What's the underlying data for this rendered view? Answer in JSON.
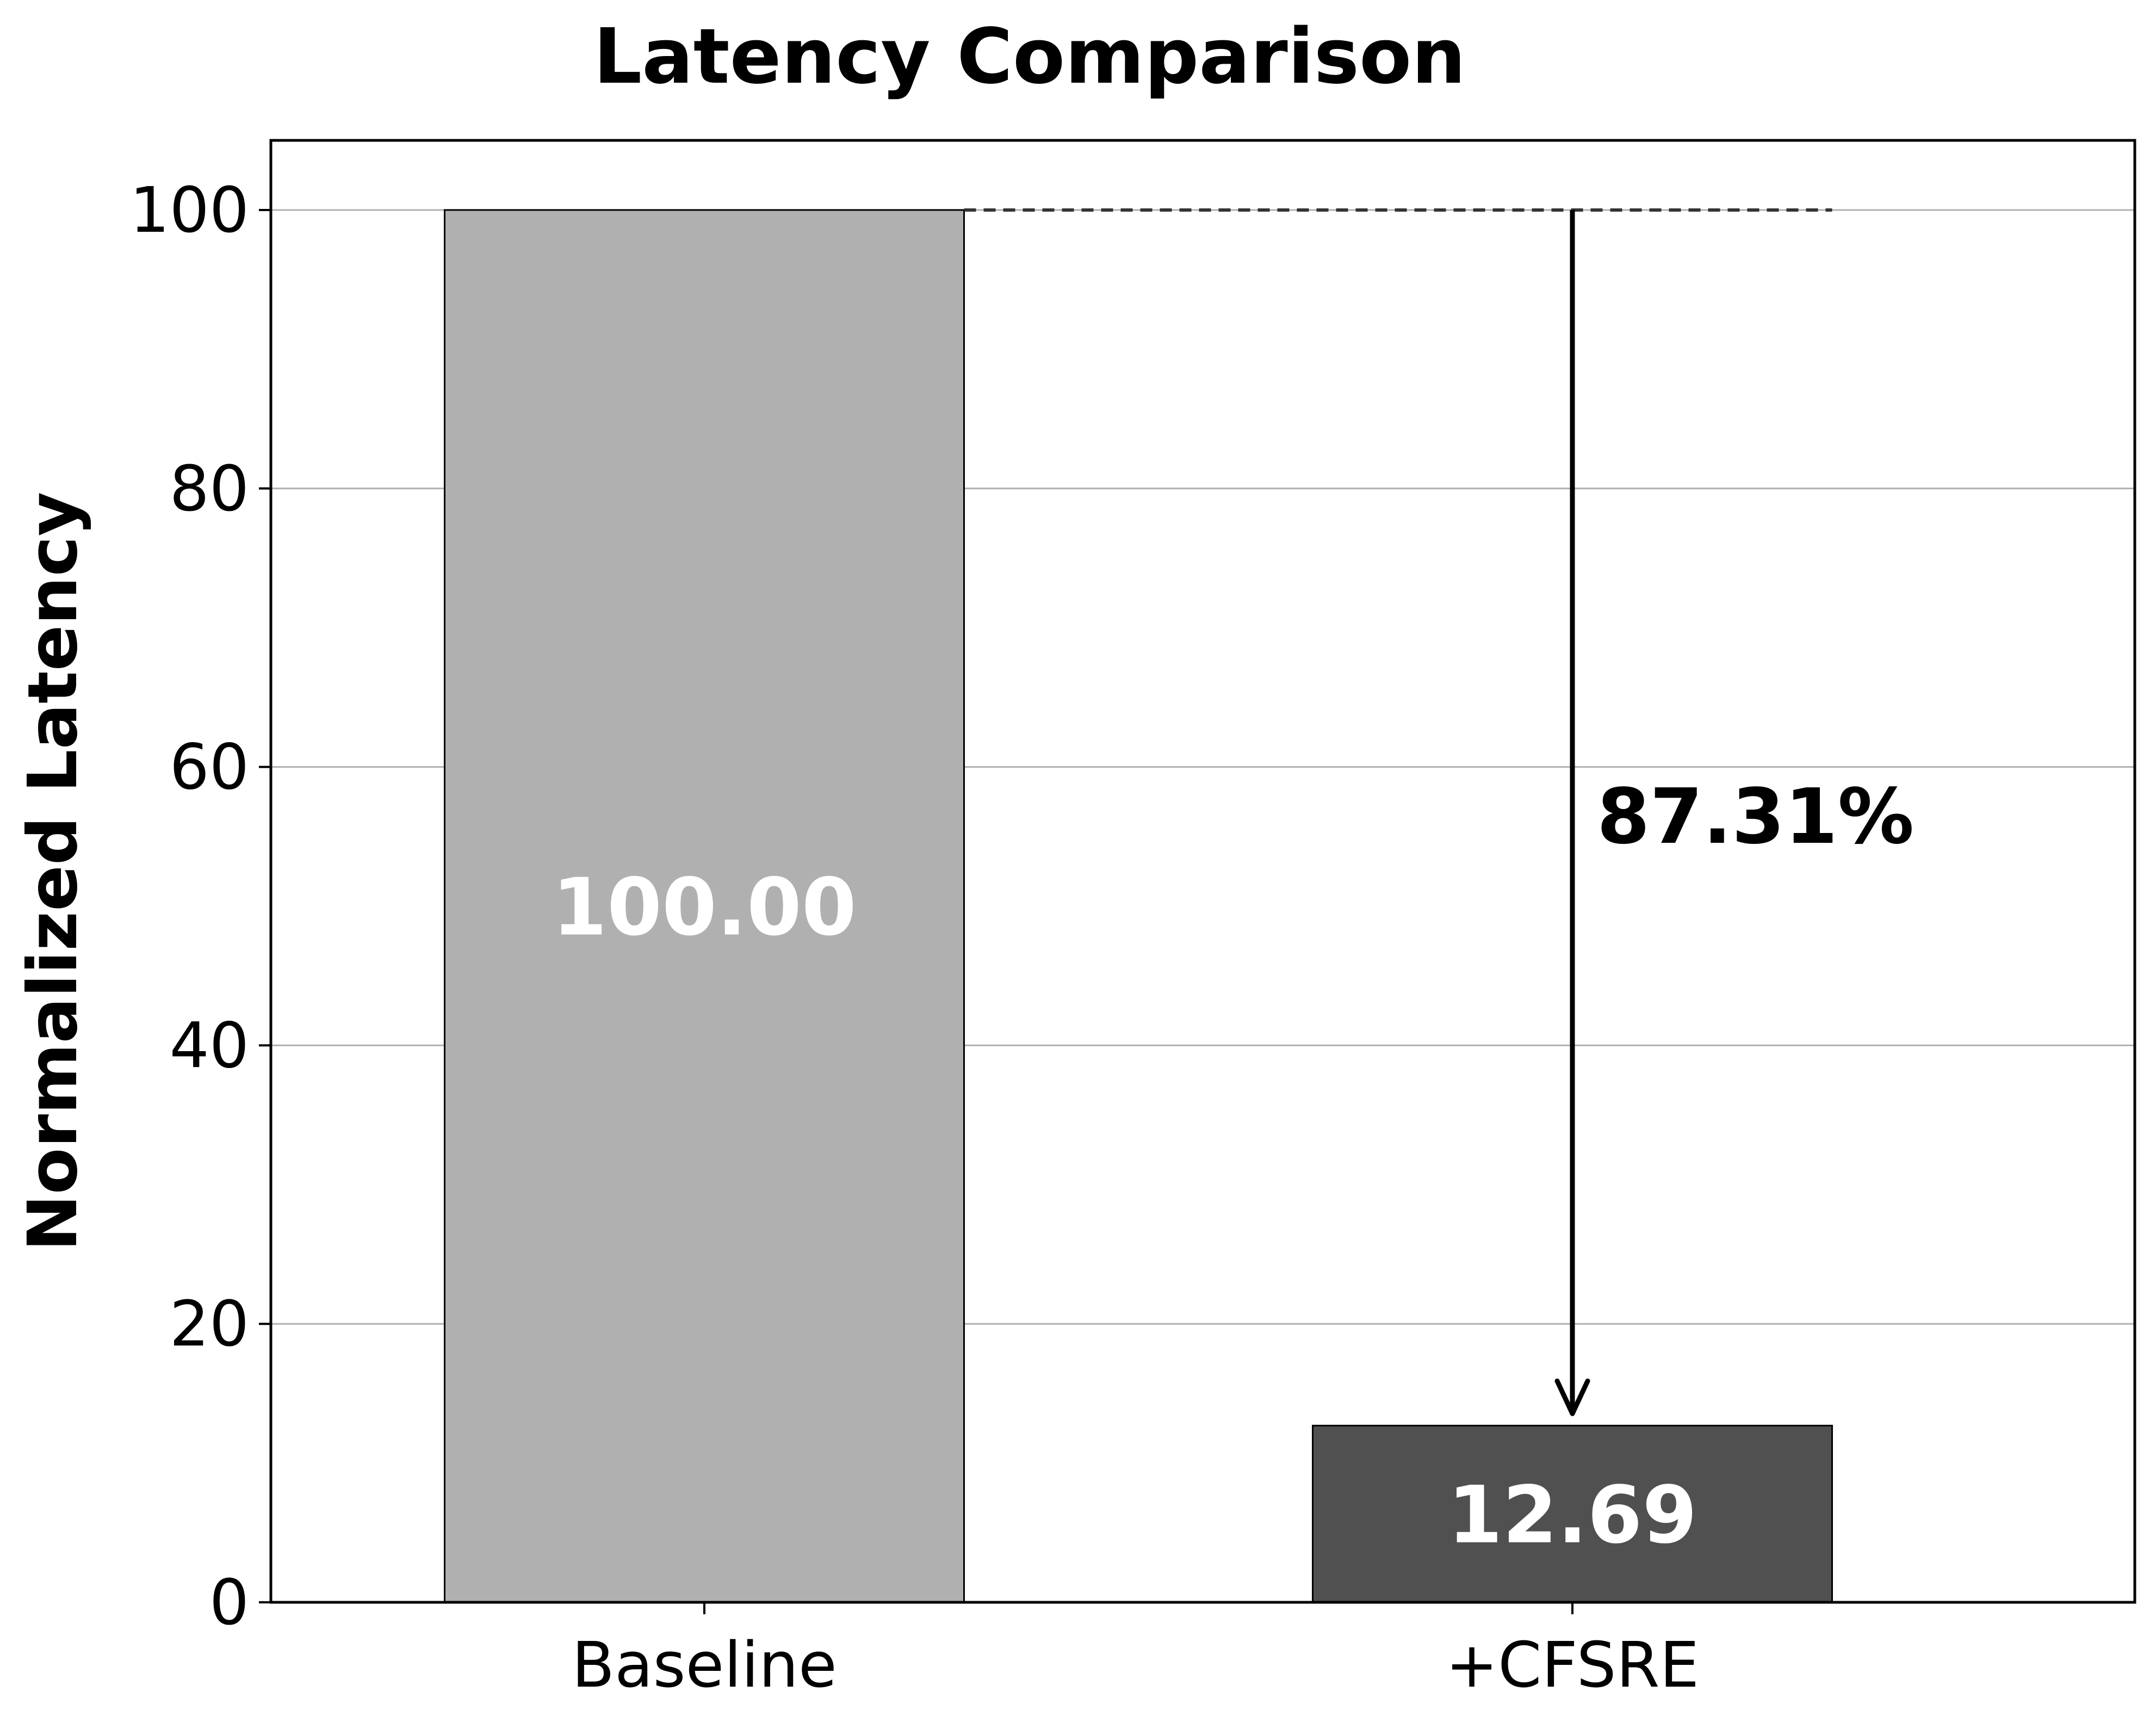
{
  "chart_data": {
    "type": "bar",
    "title": "Latency Comparison",
    "xlabel": "",
    "ylabel": "Normalized Latency",
    "categories": [
      "Baseline",
      "+CFSRE"
    ],
    "values": [
      100.0,
      12.69
    ],
    "value_labels": [
      "100.00",
      "12.69"
    ],
    "bar_colors": [
      "#b0b0b0",
      "#505050"
    ],
    "ylim": [
      0,
      105
    ],
    "yticks": [
      0,
      20,
      40,
      60,
      80,
      100
    ],
    "grid": "horizontal",
    "annotation": {
      "text": "87.31%",
      "from_value": 100,
      "to_value": 12.69,
      "category": "+CFSRE",
      "reference_line_value": 100
    }
  }
}
